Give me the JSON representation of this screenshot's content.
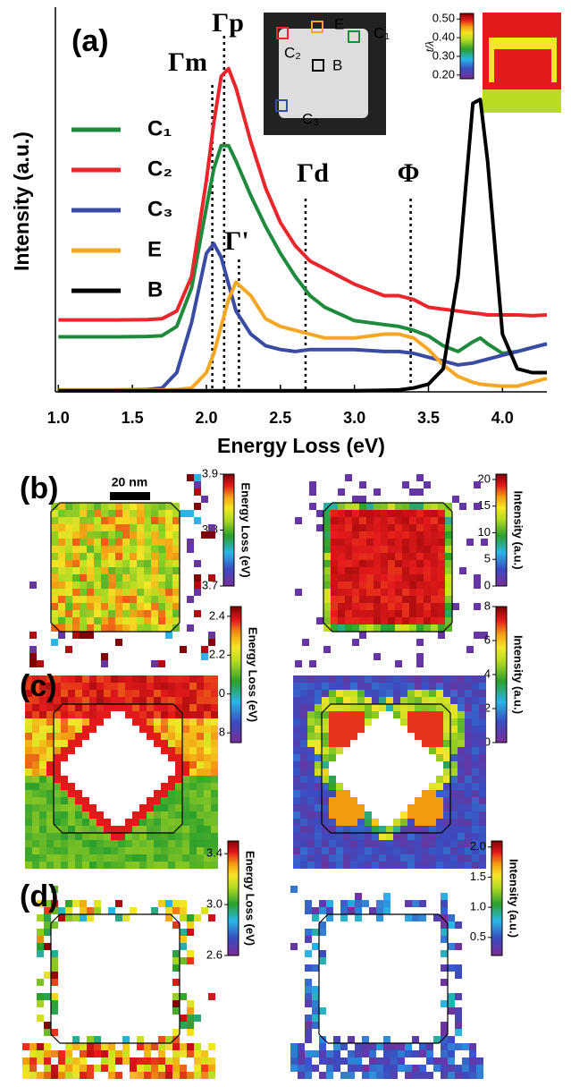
{
  "chart_data": [
    {
      "type": "line",
      "panel_label": "(a)",
      "xlabel": "Energy Loss (eV)",
      "ylabel": "Intensity (a.u.)",
      "x": [
        1.0,
        1.2,
        1.4,
        1.6,
        1.7,
        1.8,
        1.9,
        2.0,
        2.05,
        2.1,
        2.15,
        2.2,
        2.3,
        2.4,
        2.5,
        2.6,
        2.7,
        2.8,
        3.0,
        3.2,
        3.3,
        3.4,
        3.5,
        3.6,
        3.7,
        3.8,
        3.85,
        3.9,
        4.0,
        4.1,
        4.2,
        4.3
      ],
      "xlim": [
        0.98,
        4.3
      ],
      "ylim": [
        0,
        100
      ],
      "xticks": [
        {
          "value": 1,
          "label": "1.0"
        },
        1.5,
        {
          "value": 2,
          "label": "2.0"
        },
        2.5,
        {
          "value": 3,
          "label": "3.0"
        },
        3.5,
        {
          "value": 4,
          "label": "4.0"
        }
      ],
      "series": [
        {
          "name": "C₁",
          "color": "#1e8a3c",
          "values": [
            14.3,
            14.3,
            14.3,
            14.4,
            14.6,
            17,
            27,
            48,
            58,
            64,
            64,
            60,
            51,
            43,
            36,
            30,
            25,
            22,
            18.5,
            17.5,
            17,
            16,
            14.5,
            12,
            10.5,
            13,
            14,
            12.5,
            10,
            10.5,
            11.5,
            12.5
          ]
        },
        {
          "name": "C₂",
          "color": "#e8262b",
          "values": [
            18.7,
            18.7,
            18.7,
            18.8,
            19,
            21,
            30,
            55,
            70,
            82,
            84,
            79,
            65,
            53,
            44,
            38,
            34,
            32,
            28,
            25,
            25,
            24,
            22,
            21.5,
            21,
            20.5,
            20.3,
            20,
            20,
            20,
            19.8,
            20
          ]
        },
        {
          "name": "C₃",
          "color": "#3a4ba3",
          "values": [
            0.5,
            0.5,
            0.5,
            0.6,
            1,
            5,
            18,
            36,
            38.5,
            35,
            28,
            21,
            15,
            12,
            11,
            10.5,
            11,
            11,
            11,
            10.5,
            10.5,
            10,
            9,
            8,
            7,
            7.5,
            8,
            8.5,
            9.5,
            10.5,
            11.5,
            12.5
          ]
        },
        {
          "name": "E",
          "color": "#f5a623",
          "values": [
            0.5,
            0.5,
            0.5,
            0.5,
            0.5,
            0.6,
            1,
            5,
            10,
            17,
            24,
            28.5,
            25,
            19,
            17,
            16,
            15,
            14,
            14,
            15,
            15,
            14,
            11,
            7,
            4,
            2.5,
            2,
            1.8,
            1.5,
            1.5,
            2.5,
            3.5
          ]
        },
        {
          "name": "B",
          "color": "#000000",
          "values": [
            0.3,
            0.3,
            0.3,
            0.3,
            0.3,
            0.3,
            0.3,
            0.3,
            0.3,
            0.3,
            0.3,
            0.3,
            0.3,
            0.3,
            0.3,
            0.3,
            0.3,
            0.3,
            0.3,
            0.4,
            0.5,
            1,
            2,
            6,
            30,
            75,
            76,
            60,
            15,
            6,
            5,
            5
          ]
        }
      ],
      "markers": [
        {
          "x": 2.04,
          "label": "Γm"
        },
        {
          "x": 2.12,
          "label": "Γp"
        },
        {
          "x": 2.22,
          "label": "Γ'"
        },
        {
          "x": 2.67,
          "label": "Γd"
        },
        {
          "x": 3.38,
          "label": "Φ"
        }
      ],
      "inset_labels": [
        "C₂",
        "E",
        "C₁",
        "B",
        "C₃"
      ]
    },
    {
      "type": "heatmap",
      "colorbar_label": "t/λ",
      "clim": [
        0.18,
        0.53
      ],
      "cticks": [
        {
          "value": 0.5,
          "label": "0.50"
        },
        {
          "value": 0.4,
          "label": "0.40"
        },
        {
          "value": 0.3,
          "label": "0.30"
        },
        {
          "value": 0.2,
          "label": "0.20"
        }
      ]
    },
    {
      "type": "heatmap",
      "panel_label": "(b)",
      "scale_bar": "20 nm",
      "colorbar_label": "Energy Loss (eV)",
      "clim": [
        3.7,
        3.9
      ],
      "cticks": [
        3.9,
        3.8,
        3.7
      ]
    },
    {
      "type": "heatmap",
      "colorbar_label": "Intensity (a.u.)",
      "clim": [
        0,
        21
      ],
      "cticks": [
        20,
        15,
        10,
        5,
        0
      ]
    },
    {
      "type": "heatmap",
      "panel_label": "(c)",
      "colorbar_label": "Energy Loss (eV)",
      "clim": [
        1.75,
        2.45
      ],
      "cticks": [
        2.4,
        2.2,
        {
          "value": 2,
          "label": "2.0"
        },
        1.8
      ]
    },
    {
      "type": "heatmap",
      "colorbar_label": "Intensity (a.u.)",
      "clim": [
        0,
        8
      ],
      "cticks": [
        8,
        6,
        4,
        2,
        0
      ]
    },
    {
      "type": "heatmap",
      "panel_label": "(d)",
      "colorbar_label": "Energy Loss (eV)",
      "clim": [
        2.6,
        3.5
      ],
      "cticks": [
        3.4,
        {
          "value": 3,
          "label": "3.0"
        },
        2.6
      ]
    },
    {
      "type": "heatmap",
      "colorbar_label": "Intensity (a.u.)",
      "clim": [
        0.2,
        2.1
      ],
      "cticks": [
        {
          "value": 2,
          "label": "2.0"
        },
        1.5,
        {
          "value": 1,
          "label": "1.0"
        },
        0.5
      ]
    }
  ]
}
